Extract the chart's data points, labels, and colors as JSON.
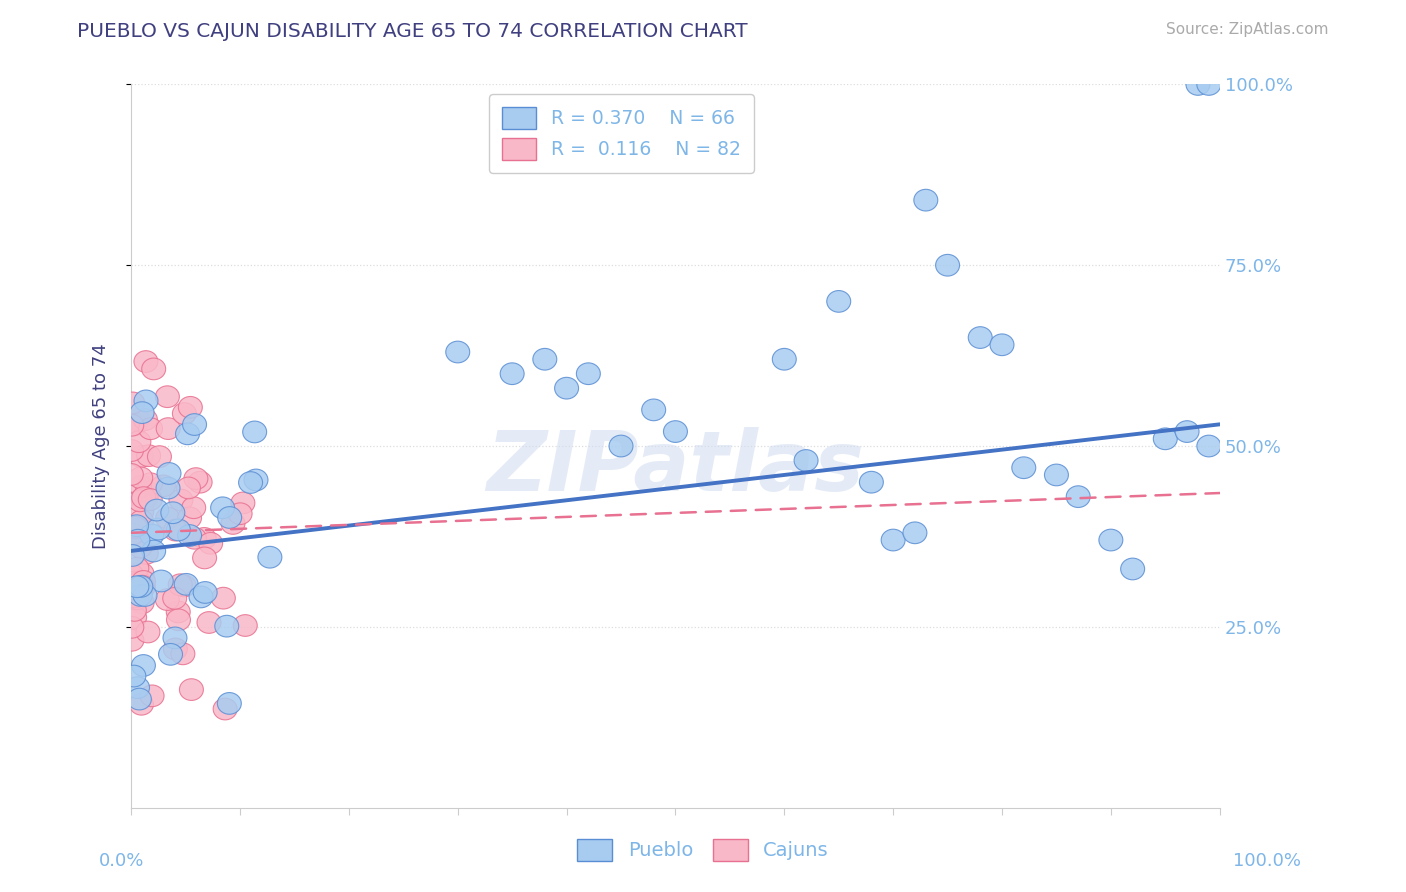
{
  "title": "PUEBLO VS CAJUN DISABILITY AGE 65 TO 74 CORRELATION CHART",
  "ylabel": "Disability Age 65 to 74",
  "source_text": "Source: ZipAtlas.com",
  "watermark": "ZIPatlas",
  "legend_pueblo_R": "R = 0.370",
  "legend_pueblo_N": "N = 66",
  "legend_cajun_R": "R =  0.116",
  "legend_cajun_N": "N = 82",
  "pueblo_color": "#A8CCF0",
  "cajun_color": "#F9B8C8",
  "pueblo_edge_color": "#5A8ED4",
  "cajun_edge_color": "#E87090",
  "pueblo_line_color": "#4472C4",
  "cajun_line_color": "#E87090",
  "background_color": "#FFFFFF",
  "grid_color": "#DDDDDD",
  "title_color": "#404080",
  "axis_label_color": "#7EB6E8",
  "right_tick_color": "#7EB6E8",
  "pueblo_line_intercept": 0.355,
  "pueblo_line_slope": 0.175,
  "cajun_line_intercept": 0.38,
  "cajun_line_slope": 0.055
}
